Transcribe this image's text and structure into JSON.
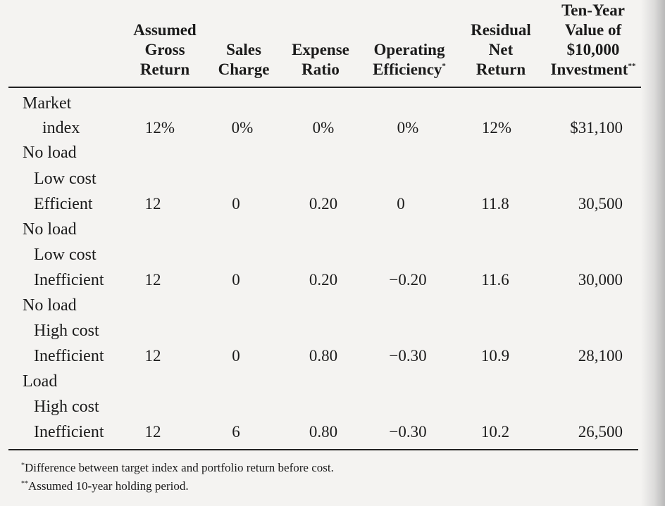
{
  "headers": [
    {
      "lines": [
        "Assumed",
        "Gross",
        "Return"
      ],
      "mark": ""
    },
    {
      "lines": [
        "Sales",
        "Charge"
      ],
      "mark": ""
    },
    {
      "lines": [
        "Expense",
        "Ratio"
      ],
      "mark": ""
    },
    {
      "lines": [
        "Operating",
        "Efficiency"
      ],
      "mark": "*"
    },
    {
      "lines": [
        "Residual",
        "Net",
        "Return"
      ],
      "mark": ""
    },
    {
      "lines": [
        "Ten-Year",
        "Value of",
        "$10,000",
        "Investment"
      ],
      "mark": "**"
    }
  ],
  "rows": [
    {
      "labels": [
        "Market",
        "index"
      ],
      "values": [
        "12%",
        "0%",
        "0%",
        "0%",
        "12%",
        "$31,100"
      ]
    },
    {
      "labels": [
        "No load",
        "Low cost",
        "Efficient"
      ],
      "values": [
        "12",
        "0",
        "0.20",
        "0",
        "11.8",
        "30,500"
      ]
    },
    {
      "labels": [
        "No load",
        "Low cost",
        "Inefficient"
      ],
      "values": [
        "12",
        "0",
        "0.20",
        "−0.20",
        "11.6",
        "30,000"
      ]
    },
    {
      "labels": [
        "No load",
        "High cost",
        "Inefficient"
      ],
      "values": [
        "12",
        "0",
        "0.80",
        "−0.30",
        "10.9",
        "28,100"
      ]
    },
    {
      "labels": [
        "Load",
        "High cost",
        "Inefficient"
      ],
      "values": [
        "12",
        "6",
        "0.80",
        "−0.30",
        "10.2",
        "26,500"
      ]
    }
  ],
  "footnotes": [
    {
      "mark": "*",
      "text": "Difference between target index and portfolio return before cost."
    },
    {
      "mark": "**",
      "text": "Assumed 10-year holding period."
    }
  ]
}
